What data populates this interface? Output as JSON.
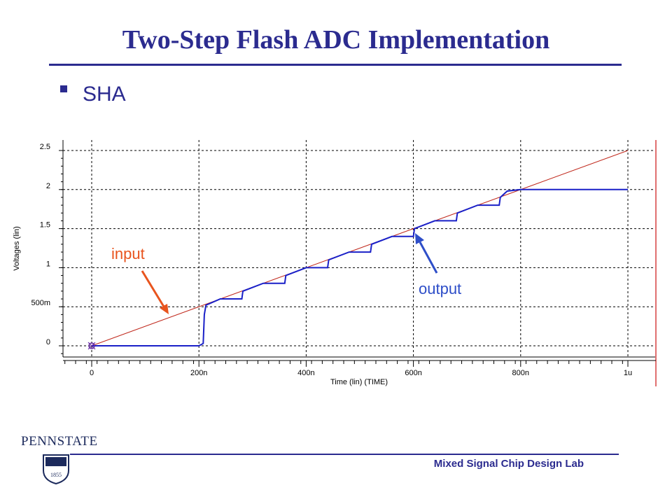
{
  "slide": {
    "title": "Two-Step Flash ADC Implementation",
    "bullet": "SHA",
    "footer": "Mixed Signal Chip Design Lab",
    "annotation_input": "input",
    "annotation_output": "output",
    "logo_text": "PENNSTATE",
    "logo_year": "1855"
  },
  "colors": {
    "title": "#2b2b8f",
    "input_line": "#c0281c",
    "output_line": "#1a20c8",
    "input_arrow": "#e8541e",
    "output_arrow": "#2e4ec8"
  },
  "chart_data": {
    "type": "line",
    "xlabel": "Time (lin) (TIME)",
    "ylabel": "Voltages (lin)",
    "xlim": [
      0,
      1000
    ],
    "ylim": [
      -0.15,
      2.65
    ],
    "x_ticks": [
      0,
      200,
      400,
      600,
      800,
      1000
    ],
    "x_tick_labels": [
      "0",
      "200n",
      "400n",
      "600n",
      "800n",
      "1u"
    ],
    "y_ticks": [
      0,
      0.5,
      1,
      1.5,
      2,
      2.5
    ],
    "y_tick_labels": [
      "0",
      "500m",
      "1",
      "1.5",
      "2",
      "2.5"
    ],
    "grid": true,
    "series": [
      {
        "name": "input",
        "x": [
          0,
          1000
        ],
        "y": [
          0,
          2.5
        ]
      },
      {
        "name": "output",
        "x": [
          0,
          200,
          208,
          210,
          213,
          240,
          280,
          282,
          320,
          360,
          362,
          400,
          440,
          442,
          480,
          520,
          522,
          560,
          600,
          602,
          640,
          680,
          682,
          720,
          760,
          762,
          775,
          800,
          1000
        ],
        "y": [
          0,
          0,
          0.03,
          0.4,
          0.52,
          0.6,
          0.6,
          0.7,
          0.8,
          0.8,
          0.9,
          1.0,
          1.0,
          1.1,
          1.2,
          1.2,
          1.3,
          1.4,
          1.4,
          1.5,
          1.6,
          1.6,
          1.7,
          1.8,
          1.8,
          1.9,
          1.98,
          2.0,
          2.0
        ]
      }
    ]
  }
}
